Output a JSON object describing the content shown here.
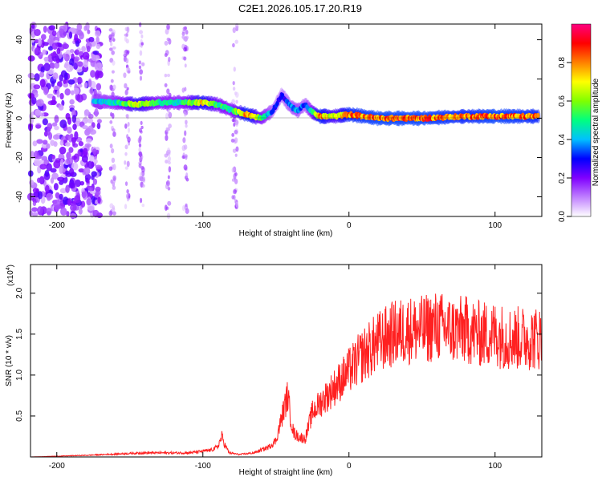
{
  "title": "C2E1.2026.105.17.20.R19",
  "chart_data": [
    {
      "type": "heatmap",
      "xlabel": "Height of straight line (km)",
      "ylabel": "Frequency (Hz)",
      "xlim": [
        -218,
        132
      ],
      "ylim": [
        -50,
        48
      ],
      "xticks": [
        -200,
        -100,
        0,
        100
      ],
      "yticks": [
        -40,
        -20,
        0,
        20,
        40
      ],
      "colorbar": {
        "label": "Normalized spectral amplitude",
        "range": [
          0,
          1
        ],
        "ticks": [
          "0.0",
          "0.2",
          "0.4",
          "0.6",
          "0.8"
        ],
        "stops": [
          "#ffffff",
          "#c080ff",
          "#8000ff",
          "#0000ff",
          "#00c0ff",
          "#00ff80",
          "#80ff00",
          "#ffff00",
          "#ff8000",
          "#ff0000",
          "#ff0080"
        ]
      },
      "ridge": {
        "x": [
          -175,
          -160,
          -145,
          -130,
          -115,
          -100,
          -90,
          -80,
          -70,
          -60,
          -52,
          -46,
          -40,
          -35,
          -30,
          -25,
          -20,
          -10,
          0,
          20,
          50,
          80,
          100,
          130
        ],
        "frequency": [
          9,
          8,
          7,
          8,
          8,
          8,
          7,
          4,
          2,
          0,
          4,
          12,
          6,
          4,
          7,
          3,
          1,
          1,
          2,
          0,
          0,
          1,
          1,
          1
        ],
        "amplitude": [
          0.45,
          0.5,
          0.78,
          0.55,
          0.52,
          0.82,
          0.6,
          0.55,
          0.9,
          0.6,
          0.35,
          0.3,
          0.4,
          0.45,
          0.35,
          0.6,
          0.9,
          0.7,
          0.9,
          0.95,
          0.95,
          0.9,
          0.95,
          0.9
        ]
      },
      "noise_region_x": [
        -218,
        -170
      ],
      "noise_columns_x": [
        -162,
        -152,
        -142,
        -124,
        -112,
        -78
      ]
    },
    {
      "type": "line",
      "xlabel": "Height of straight line (km)",
      "ylabel": "SNR (10 * v/v)",
      "y_multiplier": "(x10",
      "y_multiplier_exp": "4",
      "xlim": [
        -218,
        132
      ],
      "ylim": [
        0,
        2.35
      ],
      "xticks": [
        -200,
        -100,
        0,
        100
      ],
      "yticks": [
        "0.5",
        "1.0",
        "1.5",
        "2.0"
      ],
      "ytick_values": [
        0.5,
        1.0,
        1.5,
        2.0
      ],
      "color": "#ff2020",
      "series": [
        {
          "x": [
            -218,
            -180,
            -140,
            -110,
            -100,
            -95,
            -90,
            -87,
            -85,
            -82,
            -75,
            -65,
            -55,
            -50,
            -45,
            -42,
            -40,
            -38,
            -35,
            -30,
            -25,
            -20,
            -15,
            -10,
            0,
            10,
            20,
            30,
            40,
            50,
            60,
            70,
            80,
            90,
            100,
            110,
            120,
            130
          ],
          "values": [
            0.0,
            0.02,
            0.05,
            0.05,
            0.07,
            0.08,
            0.12,
            0.25,
            0.15,
            0.05,
            0.03,
            0.05,
            0.12,
            0.2,
            0.55,
            0.75,
            0.5,
            0.3,
            0.25,
            0.22,
            0.55,
            0.65,
            0.75,
            0.85,
            1.05,
            1.25,
            1.4,
            1.5,
            1.55,
            1.55,
            1.6,
            1.55,
            1.55,
            1.5,
            1.5,
            1.45,
            1.45,
            1.45
          ]
        }
      ]
    }
  ]
}
